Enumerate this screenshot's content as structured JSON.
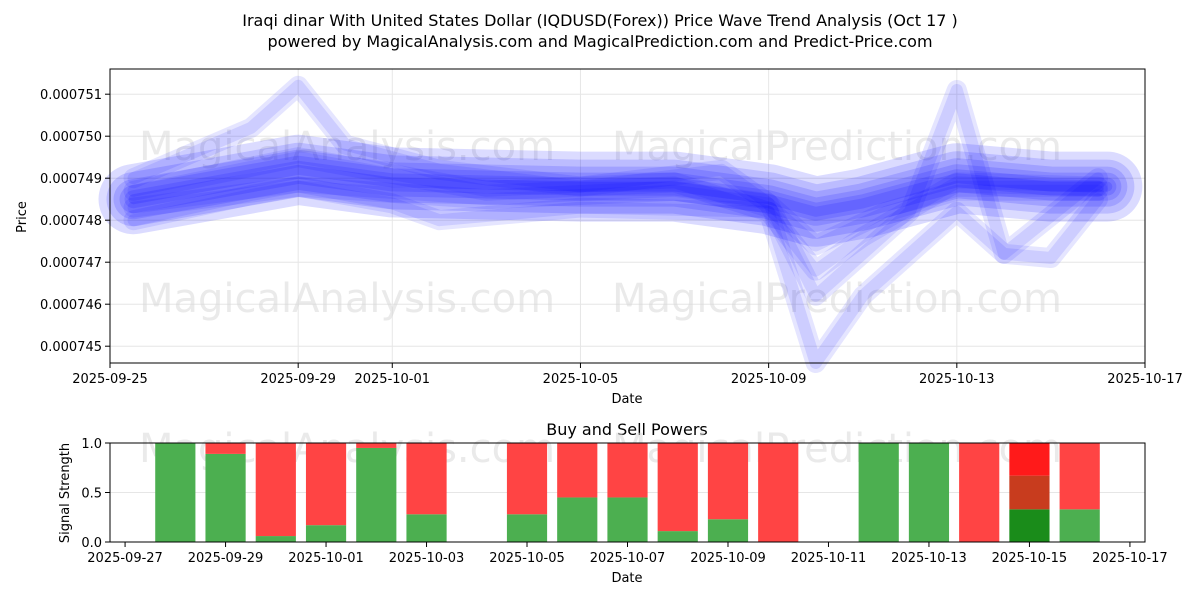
{
  "title_line1": "Iraqi dinar With United States Dollar (IQDUSD(Forex)) Price Wave Trend Analysis (Oct 17 )",
  "title_line2": "powered by MagicalAnalysis.com and MagicalPrediction.com and Predict-Price.com",
  "watermarks": [
    "MagicalAnalysis.com",
    "MagicalPrediction.com",
    "MagicalAnalysis.com",
    "MagicalPrediction.com",
    "MagicalAnalysis.com",
    "MagicalPrediction.com"
  ],
  "colors": {
    "wave": "#0000ff",
    "buy": "#4caf50",
    "sell": "#ff4444",
    "buy_dark": "#1a8c1a",
    "sell_dark": "#ff1a1a",
    "mix": "#c83c1e"
  },
  "chart_data": [
    {
      "type": "line",
      "title": "",
      "xlabel": "Date",
      "ylabel": "Price",
      "x_ticks": [
        "2025-09-25",
        "2025-09-29",
        "2025-10-01",
        "2025-10-05",
        "2025-10-09",
        "2025-10-13",
        "2025-10-17"
      ],
      "x_tick_days": [
        0,
        4,
        6,
        10,
        14,
        18,
        22
      ],
      "y_ticks": [
        "0.000745",
        "0.000746",
        "0.000747",
        "0.000748",
        "0.000749",
        "0.000750",
        "0.000751"
      ],
      "y_tick_values": [
        0.000745,
        0.000746,
        0.000747,
        0.000748,
        0.000749,
        0.00075,
        0.000751
      ],
      "xlim": [
        0,
        22
      ],
      "ylim": [
        0.0007446,
        0.0007516
      ],
      "series": [
        {
          "name": "wave-main",
          "x": [
            0.5,
            4,
            6,
            10,
            12,
            14,
            15,
            16,
            18,
            20,
            21.2
          ],
          "y": [
            0.0007485,
            0.0007492,
            0.0007489,
            0.0007488,
            0.0007488,
            0.0007485,
            0.0007482,
            0.0007484,
            0.000749,
            0.0007488,
            0.0007488
          ]
        },
        {
          "name": "wave-upper",
          "x": [
            0.5,
            3,
            4,
            5,
            7,
            10,
            13,
            14,
            15,
            17,
            18,
            19,
            21
          ],
          "y": [
            0.000749,
            0.0007502,
            0.0007512,
            0.0007498,
            0.0007492,
            0.0007488,
            0.0007492,
            0.0007484,
            0.0007462,
            0.0007482,
            0.0007511,
            0.0007472,
            0.000749
          ]
        },
        {
          "name": "wave-lower",
          "x": [
            0.5,
            3,
            4,
            6,
            7,
            10,
            14,
            15,
            16,
            18,
            19,
            20,
            21
          ],
          "y": [
            0.000748,
            0.0007486,
            0.0007488,
            0.0007484,
            0.000748,
            0.0007483,
            0.0007482,
            0.0007446,
            0.0007462,
            0.0007482,
            0.0007472,
            0.0007471,
            0.0007485
          ]
        },
        {
          "name": "wave-mid-a",
          "x": [
            0.5,
            4,
            8,
            12,
            14,
            15,
            16,
            18,
            21
          ],
          "y": [
            0.0007487,
            0.0007495,
            0.0007487,
            0.0007489,
            0.0007482,
            0.0007468,
            0.0007476,
            0.0007489,
            0.0007488
          ]
        },
        {
          "name": "wave-mid-b",
          "x": [
            0.5,
            4,
            8,
            12,
            14,
            15,
            16.5,
            18,
            21
          ],
          "y": [
            0.0007483,
            0.0007488,
            0.0007485,
            0.0007487,
            0.0007484,
            0.0007474,
            0.0007482,
            0.0007487,
            0.0007487
          ]
        }
      ]
    },
    {
      "type": "bar",
      "title": "Buy and Sell Powers",
      "xlabel": "Date",
      "ylabel": "Signal Strength",
      "x_ticks": [
        "2025-09-27",
        "2025-09-29",
        "2025-10-01",
        "2025-10-03",
        "2025-10-05",
        "2025-10-07",
        "2025-10-09",
        "2025-10-11",
        "2025-10-13",
        "2025-10-15",
        "2025-10-17"
      ],
      "x_tick_days": [
        0,
        2,
        4,
        6,
        8,
        10,
        12,
        14,
        16,
        18,
        20
      ],
      "y_ticks": [
        "0.0",
        "0.5",
        "1.0"
      ],
      "y_tick_values": [
        0,
        0.5,
        1.0
      ],
      "xlim": [
        -0.3,
        20.3
      ],
      "ylim": [
        0,
        1
      ],
      "bars": [
        {
          "day": 1,
          "buy": 1.0
        },
        {
          "day": 2,
          "buy": 0.89
        },
        {
          "day": 3,
          "buy": 0.06
        },
        {
          "day": 4,
          "buy": 0.17
        },
        {
          "day": 5,
          "buy": 0.95
        },
        {
          "day": 6,
          "buy": 0.28
        },
        {
          "day": 8,
          "buy": 0.28
        },
        {
          "day": 9,
          "buy": 0.45
        },
        {
          "day": 10,
          "buy": 0.45
        },
        {
          "day": 11,
          "buy": 0.11
        },
        {
          "day": 12,
          "buy": 0.23
        },
        {
          "day": 13,
          "buy": 0.0
        },
        {
          "day": 15,
          "buy": 1.0
        },
        {
          "day": 16,
          "buy": 1.0
        },
        {
          "day": 17,
          "buy": 0.0
        },
        {
          "day": 18,
          "buy": 0.33,
          "mixed": 0.34
        },
        {
          "day": 19,
          "buy": 0.33
        }
      ]
    }
  ]
}
